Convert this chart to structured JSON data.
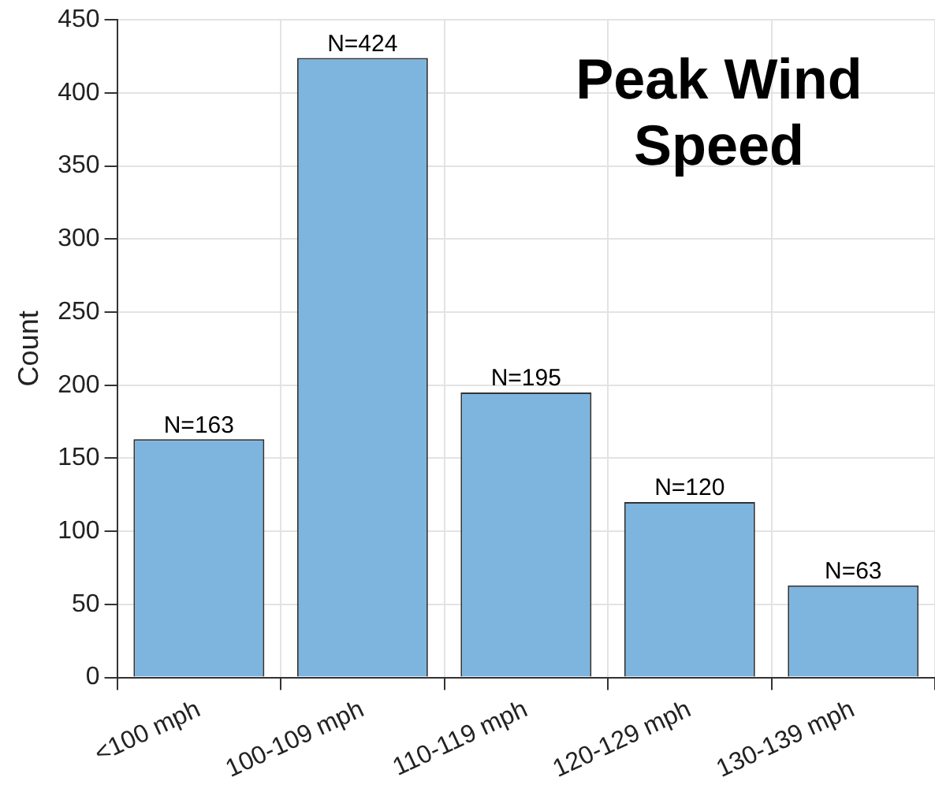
{
  "chart_data": {
    "type": "bar",
    "ylabel": "Count",
    "categories": [
      "<100 mph",
      "100-109 mph",
      "110-119 mph",
      "120-129 mph",
      "130-139 mph"
    ],
    "values": [
      163,
      424,
      195,
      120,
      63
    ],
    "value_labels": [
      "N=163",
      "N=424",
      "N=195",
      "N=120",
      "N=63"
    ],
    "color": "#7db5df",
    "ylim": [
      0,
      450
    ],
    "yticks": [
      0,
      50,
      100,
      150,
      200,
      250,
      300,
      350,
      400,
      450
    ],
    "grid": true,
    "legend": false,
    "annotations": [
      "Peak Wind Speed"
    ]
  }
}
